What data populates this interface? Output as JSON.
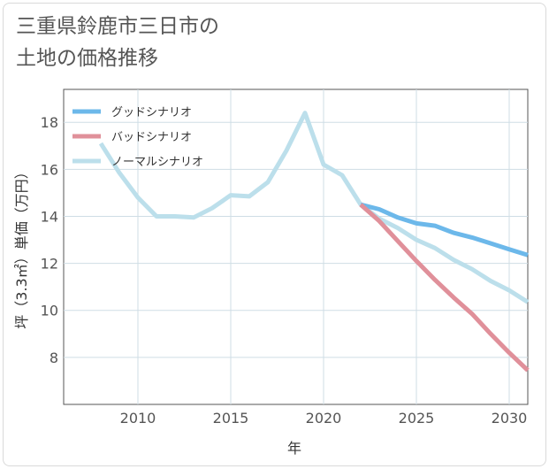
{
  "title_lines": [
    "三重県鈴鹿市三日市の",
    "土地の価格推移"
  ],
  "chart_data": {
    "type": "line",
    "xlabel": "年",
    "ylabel": "坪（3.3㎡）単価（万円）",
    "xlim": [
      2006,
      2031
    ],
    "ylim": [
      6,
      19.4
    ],
    "x_ticks": [
      2010,
      2015,
      2020,
      2025,
      2030
    ],
    "y_ticks": [
      8,
      10,
      12,
      14,
      16,
      18
    ],
    "grid": true,
    "legend_position": "top-left",
    "series": [
      {
        "name": "グッドシナリオ",
        "color": "#6cb8ea",
        "x": [
          2022,
          2023,
          2024,
          2025,
          2026,
          2027,
          2028,
          2029,
          2030,
          2031
        ],
        "values": [
          14.5,
          14.3,
          13.95,
          13.7,
          13.6,
          13.3,
          13.1,
          12.85,
          12.6,
          12.35
        ]
      },
      {
        "name": "バッドシナリオ",
        "color": "#e0909a",
        "x": [
          2022,
          2023,
          2024,
          2025,
          2026,
          2027,
          2028,
          2029,
          2030,
          2031
        ],
        "values": [
          14.5,
          13.8,
          12.95,
          12.1,
          11.3,
          10.55,
          9.85,
          9.0,
          8.2,
          7.45
        ]
      },
      {
        "name": "ノーマルシナリオ",
        "color": "#bcdfeb",
        "x": [
          2008,
          2009,
          2010,
          2011,
          2012,
          2013,
          2014,
          2015,
          2016,
          2017,
          2018,
          2019,
          2020,
          2021,
          2022,
          2023,
          2024,
          2025,
          2026,
          2027,
          2028,
          2029,
          2030,
          2031
        ],
        "values": [
          17.1,
          15.85,
          14.8,
          14.0,
          14.0,
          13.95,
          14.35,
          14.9,
          14.85,
          15.45,
          16.8,
          18.4,
          16.2,
          15.75,
          14.5,
          13.9,
          13.5,
          13.0,
          12.65,
          12.15,
          11.75,
          11.25,
          10.85,
          10.35
        ]
      }
    ]
  }
}
